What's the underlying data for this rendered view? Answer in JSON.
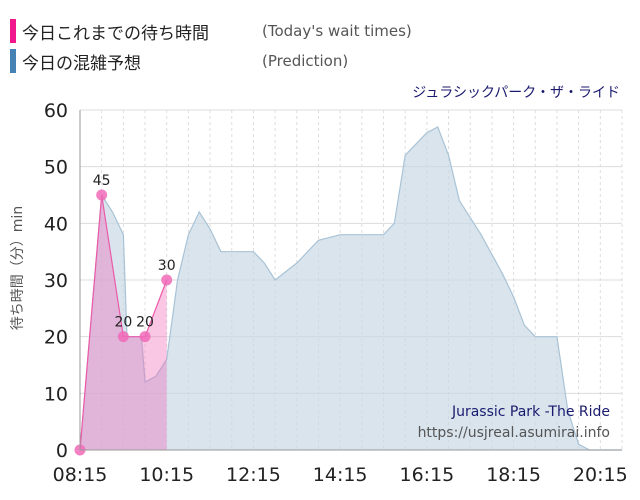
{
  "legend": {
    "today_label": "今日これまでの待ち時間",
    "today_sub": "(Today's wait times)",
    "today_color": "#f0188c",
    "pred_label": "今日の混雑予想",
    "pred_sub": "(Prediction)",
    "pred_color": "#4682b4"
  },
  "attraction_jp": "ジュラシックパーク・ザ・ライド",
  "watermark": {
    "name": "Jurassic Park -The Ride",
    "url": "https://usjreal.asumirai.info"
  },
  "chart_data": {
    "type": "area",
    "ylabel": "待ち時間（分）min",
    "ylim": [
      0,
      60
    ],
    "yticks": [
      0,
      10,
      20,
      30,
      40,
      50,
      60
    ],
    "xlim": [
      "08:15",
      "20:45"
    ],
    "xticks": [
      "08:15",
      "10:15",
      "12:15",
      "14:15",
      "16:15",
      "18:15",
      "20:15"
    ],
    "grid": true,
    "series": [
      {
        "name": "今日の混雑予想",
        "kind": "prediction",
        "points": [
          [
            "08:15",
            0
          ],
          [
            "08:45",
            45
          ],
          [
            "09:00",
            42
          ],
          [
            "09:15",
            38
          ],
          [
            "09:20",
            20
          ],
          [
            "09:40",
            20
          ],
          [
            "09:45",
            12
          ],
          [
            "10:00",
            13
          ],
          [
            "10:15",
            16
          ],
          [
            "10:30",
            30
          ],
          [
            "10:45",
            38
          ],
          [
            "11:00",
            42
          ],
          [
            "11:15",
            39
          ],
          [
            "11:30",
            35
          ],
          [
            "11:45",
            35
          ],
          [
            "12:15",
            35
          ],
          [
            "12:30",
            33
          ],
          [
            "12:45",
            30
          ],
          [
            "13:15",
            33
          ],
          [
            "13:45",
            37
          ],
          [
            "14:15",
            38
          ],
          [
            "14:45",
            38
          ],
          [
            "15:15",
            38
          ],
          [
            "15:30",
            40
          ],
          [
            "15:45",
            52
          ],
          [
            "16:15",
            56
          ],
          [
            "16:30",
            57
          ],
          [
            "16:45",
            52
          ],
          [
            "17:00",
            44
          ],
          [
            "17:30",
            38
          ],
          [
            "18:00",
            31
          ],
          [
            "18:15",
            27
          ],
          [
            "18:30",
            22
          ],
          [
            "18:45",
            20
          ],
          [
            "19:15",
            20
          ],
          [
            "19:30",
            7
          ],
          [
            "19:45",
            1
          ],
          [
            "20:00",
            0
          ],
          [
            "20:45",
            0
          ]
        ]
      },
      {
        "name": "今日これまでの待ち時間",
        "kind": "today",
        "points": [
          [
            "08:15",
            0
          ],
          [
            "08:45",
            45
          ],
          [
            "09:15",
            20
          ],
          [
            "09:45",
            20
          ],
          [
            "10:15",
            30
          ]
        ],
        "labels": [
          "",
          "45",
          "20",
          "20",
          "30"
        ]
      }
    ]
  }
}
